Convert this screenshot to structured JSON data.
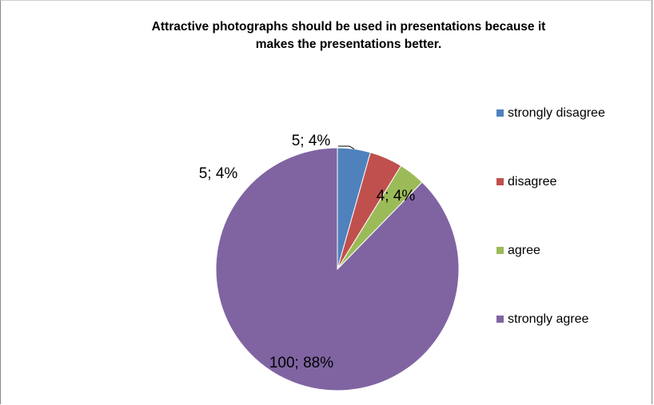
{
  "chart_data": {
    "type": "pie",
    "title_lines": [
      "Attractive photographs should be used in presentations because it",
      "makes the presentations better."
    ],
    "categories": [
      "strongly disagree",
      "disagree",
      "agree",
      "strongly agree"
    ],
    "values": [
      5,
      5,
      4,
      100
    ],
    "percents": [
      4,
      4,
      4,
      88
    ],
    "data_labels": [
      "5; 4%",
      "5; 4%",
      "4; 4%",
      "100; 88%"
    ],
    "colors": [
      "#4f81bd",
      "#c0504d",
      "#9bbb59",
      "#8064a2"
    ],
    "legend_position": "right"
  }
}
